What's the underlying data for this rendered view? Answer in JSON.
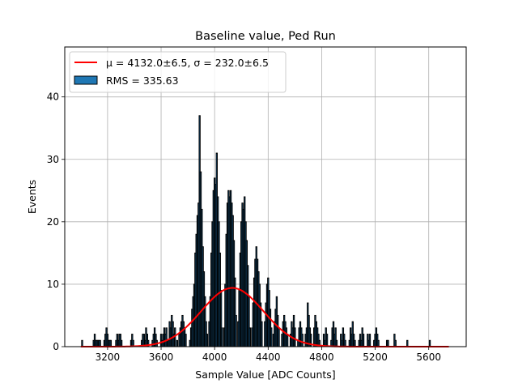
{
  "chart_data": {
    "type": "bar",
    "title": "Baseline value, Ped Run",
    "xlabel": "Sample Value [ADC Counts]",
    "ylabel": "Events",
    "xlim": [
      2880,
      5880
    ],
    "ylim": [
      0,
      48
    ],
    "xticks": [
      3200,
      3600,
      4000,
      4400,
      4800,
      5200,
      5600
    ],
    "yticks": [
      0,
      10,
      20,
      30,
      40
    ],
    "grid": true,
    "legend_position": "top-left",
    "legend": [
      {
        "label": "μ = 4132.0±6.5, σ = 232.0±6.5",
        "kind": "line",
        "color": "#ff0000"
      },
      {
        "label": "RMS = 335.63",
        "kind": "patch",
        "color": "#1f77b4"
      }
    ],
    "bar_color": "#1f77b4",
    "bar_edge_color": "#000000",
    "fit_color": "#ff0000",
    "histogram": {
      "bin_width": 8,
      "bins": [
        [
          3010,
          1
        ],
        [
          3096,
          1
        ],
        [
          3104,
          2
        ],
        [
          3112,
          1
        ],
        [
          3120,
          1
        ],
        [
          3128,
          1
        ],
        [
          3136,
          1
        ],
        [
          3144,
          1
        ],
        [
          3176,
          1
        ],
        [
          3184,
          2
        ],
        [
          3192,
          3
        ],
        [
          3200,
          2
        ],
        [
          3208,
          1
        ],
        [
          3216,
          1
        ],
        [
          3224,
          1
        ],
        [
          3264,
          1
        ],
        [
          3272,
          2
        ],
        [
          3280,
          1
        ],
        [
          3288,
          2
        ],
        [
          3296,
          2
        ],
        [
          3304,
          1
        ],
        [
          3376,
          1
        ],
        [
          3384,
          2
        ],
        [
          3392,
          1
        ],
        [
          3456,
          1
        ],
        [
          3464,
          2
        ],
        [
          3472,
          2
        ],
        [
          3480,
          1
        ],
        [
          3488,
          3
        ],
        [
          3496,
          2
        ],
        [
          3504,
          1
        ],
        [
          3536,
          1
        ],
        [
          3544,
          2
        ],
        [
          3552,
          3
        ],
        [
          3560,
          2
        ],
        [
          3568,
          1
        ],
        [
          3600,
          2
        ],
        [
          3608,
          1
        ],
        [
          3616,
          2
        ],
        [
          3624,
          3
        ],
        [
          3632,
          2
        ],
        [
          3640,
          3
        ],
        [
          3648,
          1
        ],
        [
          3656,
          1
        ],
        [
          3664,
          4
        ],
        [
          3672,
          3
        ],
        [
          3680,
          5
        ],
        [
          3688,
          4
        ],
        [
          3696,
          2
        ],
        [
          3704,
          3
        ],
        [
          3720,
          1
        ],
        [
          3736,
          2
        ],
        [
          3744,
          3
        ],
        [
          3752,
          4
        ],
        [
          3760,
          5
        ],
        [
          3768,
          4
        ],
        [
          3776,
          3
        ],
        [
          3784,
          2
        ],
        [
          3816,
          1
        ],
        [
          3824,
          3
        ],
        [
          3832,
          6
        ],
        [
          3840,
          8
        ],
        [
          3848,
          10
        ],
        [
          3856,
          15
        ],
        [
          3864,
          18
        ],
        [
          3872,
          21
        ],
        [
          3880,
          23
        ],
        [
          3888,
          37
        ],
        [
          3896,
          28
        ],
        [
          3904,
          22
        ],
        [
          3912,
          16
        ],
        [
          3920,
          12
        ],
        [
          3928,
          8
        ],
        [
          3936,
          4
        ],
        [
          3944,
          2
        ],
        [
          3960,
          4
        ],
        [
          3968,
          8
        ],
        [
          3976,
          15
        ],
        [
          3984,
          20
        ],
        [
          3992,
          25
        ],
        [
          4000,
          27
        ],
        [
          4008,
          26
        ],
        [
          4016,
          31
        ],
        [
          4024,
          24
        ],
        [
          4032,
          20
        ],
        [
          4040,
          15
        ],
        [
          4048,
          9
        ],
        [
          4056,
          3
        ],
        [
          4072,
          3
        ],
        [
          4080,
          10
        ],
        [
          4088,
          18
        ],
        [
          4096,
          23
        ],
        [
          4104,
          25
        ],
        [
          4112,
          24
        ],
        [
          4120,
          25
        ],
        [
          4128,
          23
        ],
        [
          4136,
          21
        ],
        [
          4144,
          17
        ],
        [
          4152,
          11
        ],
        [
          4160,
          5
        ],
        [
          4176,
          4
        ],
        [
          4184,
          9
        ],
        [
          4192,
          15
        ],
        [
          4200,
          20
        ],
        [
          4208,
          23
        ],
        [
          4216,
          22
        ],
        [
          4224,
          24
        ],
        [
          4232,
          20
        ],
        [
          4240,
          17
        ],
        [
          4248,
          13
        ],
        [
          4256,
          8
        ],
        [
          4264,
          3
        ],
        [
          4280,
          3
        ],
        [
          4288,
          7
        ],
        [
          4296,
          11
        ],
        [
          4304,
          14
        ],
        [
          4312,
          16
        ],
        [
          4320,
          14
        ],
        [
          4328,
          12
        ],
        [
          4336,
          10
        ],
        [
          4344,
          7
        ],
        [
          4352,
          4
        ],
        [
          4376,
          4
        ],
        [
          4384,
          7
        ],
        [
          4392,
          10
        ],
        [
          4400,
          11
        ],
        [
          4408,
          9
        ],
        [
          4416,
          6
        ],
        [
          4424,
          3
        ],
        [
          4440,
          2
        ],
        [
          4448,
          4
        ],
        [
          4456,
          6
        ],
        [
          4464,
          8
        ],
        [
          4472,
          5
        ],
        [
          4480,
          3
        ],
        [
          4504,
          2
        ],
        [
          4512,
          4
        ],
        [
          4520,
          5
        ],
        [
          4528,
          4
        ],
        [
          4536,
          3
        ],
        [
          4544,
          2
        ],
        [
          4568,
          2
        ],
        [
          4576,
          4
        ],
        [
          4584,
          3
        ],
        [
          4592,
          5
        ],
        [
          4600,
          3
        ],
        [
          4624,
          1
        ],
        [
          4632,
          3
        ],
        [
          4640,
          4
        ],
        [
          4648,
          3
        ],
        [
          4656,
          2
        ],
        [
          4680,
          2
        ],
        [
          4688,
          3
        ],
        [
          4696,
          7
        ],
        [
          4704,
          5
        ],
        [
          4712,
          3
        ],
        [
          4720,
          2
        ],
        [
          4744,
          3
        ],
        [
          4752,
          5
        ],
        [
          4760,
          4
        ],
        [
          4768,
          3
        ],
        [
          4776,
          2
        ],
        [
          4784,
          1
        ],
        [
          4816,
          2
        ],
        [
          4824,
          1
        ],
        [
          4832,
          3
        ],
        [
          4840,
          2
        ],
        [
          4872,
          1
        ],
        [
          4880,
          3
        ],
        [
          4888,
          4
        ],
        [
          4896,
          2
        ],
        [
          4904,
          3
        ],
        [
          4912,
          1
        ],
        [
          4944,
          2
        ],
        [
          4952,
          1
        ],
        [
          4960,
          3
        ],
        [
          4968,
          2
        ],
        [
          4976,
          1
        ],
        [
          5008,
          1
        ],
        [
          5016,
          3
        ],
        [
          5024,
          2
        ],
        [
          5032,
          4
        ],
        [
          5040,
          2
        ],
        [
          5048,
          1
        ],
        [
          5080,
          1
        ],
        [
          5088,
          2
        ],
        [
          5096,
          1
        ],
        [
          5104,
          3
        ],
        [
          5112,
          2
        ],
        [
          5144,
          2
        ],
        [
          5152,
          1
        ],
        [
          5160,
          2
        ],
        [
          5192,
          1
        ],
        [
          5200,
          2
        ],
        [
          5208,
          3
        ],
        [
          5216,
          2
        ],
        [
          5224,
          1
        ],
        [
          5288,
          1
        ],
        [
          5296,
          1
        ],
        [
          5344,
          2
        ],
        [
          5352,
          1
        ],
        [
          5440,
          1
        ],
        [
          5608,
          1
        ]
      ]
    },
    "fit": {
      "mu": 4132.0,
      "sigma": 232.0,
      "amplitude": 9.4,
      "x_range": [
        3000,
        5750
      ]
    }
  }
}
